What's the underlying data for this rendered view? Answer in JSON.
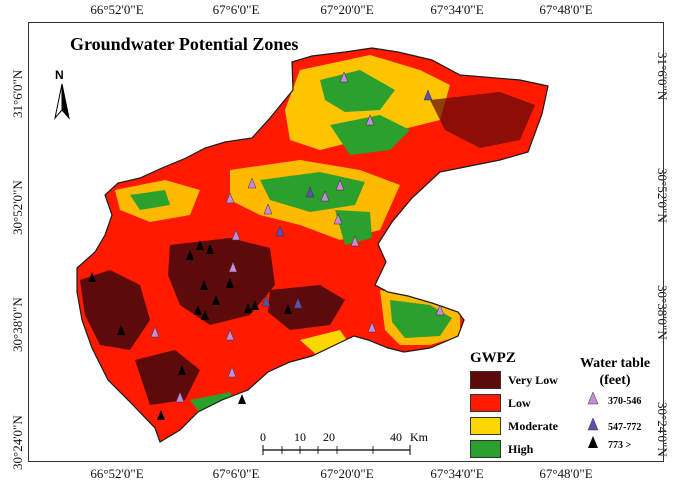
{
  "map": {
    "title": "Groundwater Potential Zones",
    "north_label": "N",
    "graticule": {
      "top_lon": [
        "66°52'0\"E",
        "67°6'0\"E",
        "67°20'0\"E",
        "67°34'0\"E",
        "67°48'0\"E"
      ],
      "bottom_lon": [
        "66°52'0\"E",
        "67°6'0\"E",
        "67°20'0\"E",
        "67°34'0\"E",
        "67°48'0\"E"
      ],
      "left_lat": [
        "31°6'0\"N",
        "30°52'0\"N",
        "30°38'0\"N",
        "30°24'0\"N"
      ],
      "right_lat": [
        "31°6'0\"N",
        "30°52'0\"N",
        "30°38'0\"N",
        "30°24'0\"N"
      ]
    },
    "colors": {
      "very_low": "#5c0a0a",
      "low": "#ff1a00",
      "moderate": "#ffd700",
      "high": "#2ca02c",
      "outline": "#1a1a1a"
    },
    "legend": {
      "title": "GWPZ",
      "items": [
        {
          "label": "Very Low",
          "color": "#5c0a0a"
        },
        {
          "label": "Low",
          "color": "#ff1a00"
        },
        {
          "label": "Moderate",
          "color": "#ffd700"
        },
        {
          "label": "High",
          "color": "#2ca02c"
        }
      ]
    },
    "water_table": {
      "title_line1": "Water table",
      "title_line2": "(feet)",
      "classes": [
        {
          "label": "370-546",
          "icon": "cone-light-violet-icon",
          "color": "#c98ad8"
        },
        {
          "label": "547-772",
          "icon": "cone-blue-violet-icon",
          "color": "#5d4fb0"
        },
        {
          "label": "773 >",
          "icon": "cone-black-icon",
          "color": "#000000"
        }
      ]
    },
    "scale_bar": {
      "ticks": [
        "0",
        "10",
        "20",
        "40"
      ],
      "unit": "Km"
    }
  }
}
